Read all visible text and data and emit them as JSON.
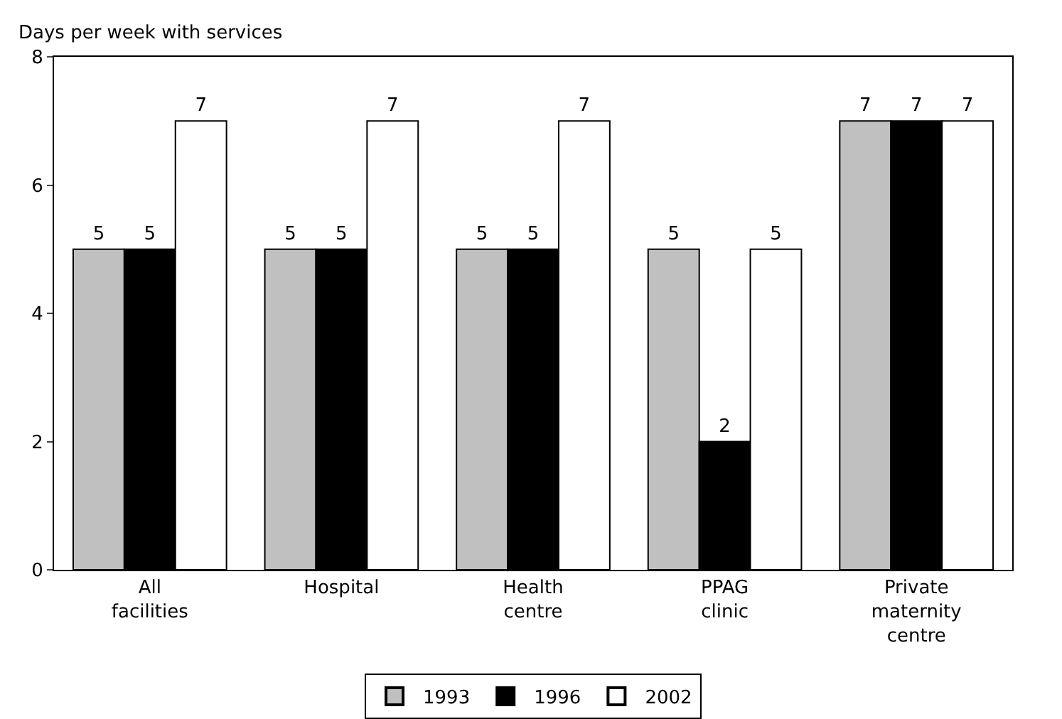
{
  "chart_data": {
    "type": "bar",
    "ylabel": "Days per week with services",
    "categories": [
      "All facilities",
      "Hospital",
      "Health centre",
      "PPAG clinic",
      "Private maternity centre"
    ],
    "series": [
      {
        "name": "1993",
        "color": "#c0c0c0",
        "values": [
          5,
          5,
          5,
          5,
          7
        ]
      },
      {
        "name": "1996",
        "color": "#000000",
        "values": [
          5,
          5,
          5,
          2,
          7
        ]
      },
      {
        "name": "2002",
        "color": "#ffffff",
        "values": [
          7,
          7,
          7,
          5,
          7
        ]
      }
    ],
    "ylim": [
      0,
      8
    ],
    "yticks": [
      0,
      2,
      4,
      6,
      8
    ],
    "grid": false,
    "legend": "bottom",
    "data_labels": true
  }
}
